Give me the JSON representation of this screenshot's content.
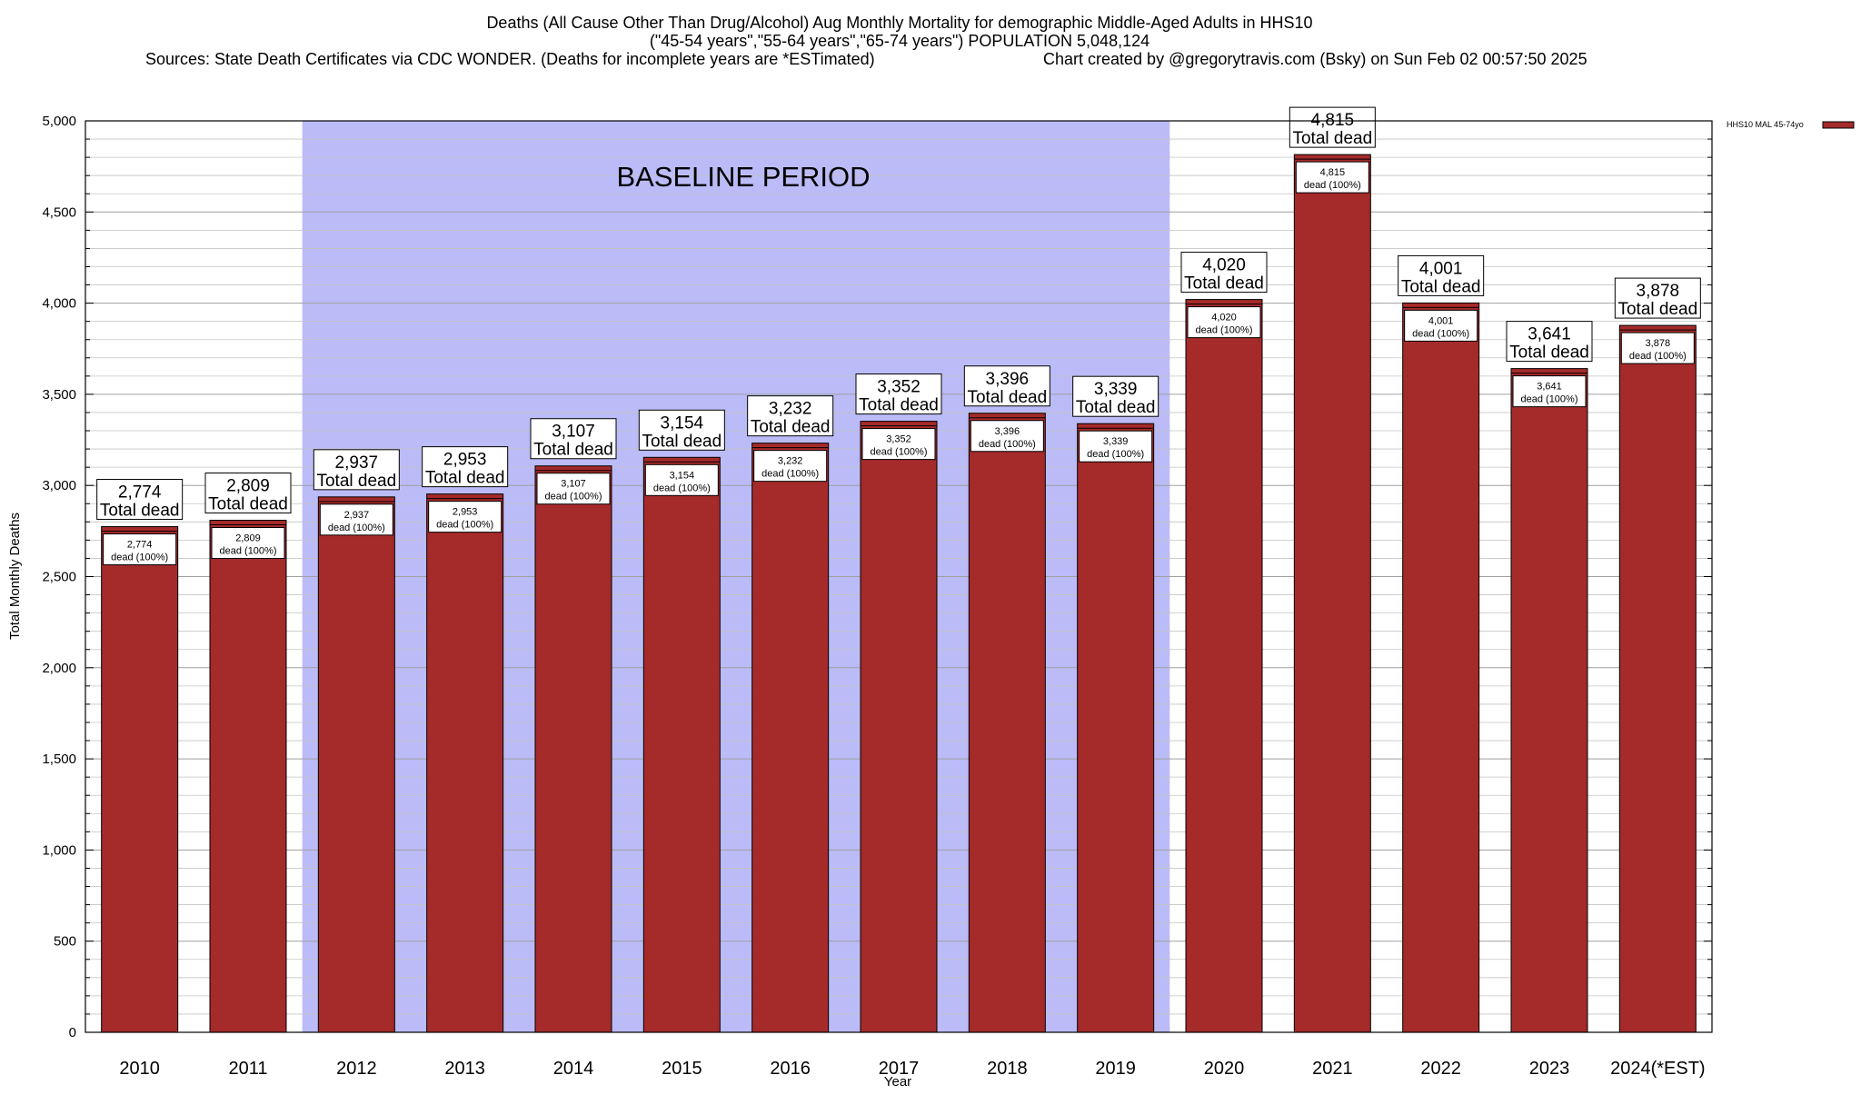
{
  "chart_data": {
    "type": "bar",
    "title_lines": [
      "Deaths (All Cause Other Than Drug/Alcohol) Aug Monthly Mortality for demographic Middle-Aged Adults in HHS10",
      "(\"45-54 years\",\"55-64 years\",\"65-74 years\") POPULATION 5,048,124"
    ],
    "sources": "Sources: State Death Certificates via CDC WONDER. (Deaths for incomplete years are *ESTimated)",
    "credit": "Chart created by @gregorytravis.com (Bsky) on Sun Feb 02 00:57:50 2025",
    "xlabel": "Year",
    "ylabel": "Total Monthly Deaths",
    "ylim": [
      0,
      5000
    ],
    "yticks": [
      0,
      500,
      1000,
      1500,
      2000,
      2500,
      3000,
      3500,
      4000,
      4500,
      5000
    ],
    "ytick_labels": [
      "0",
      "500",
      "1,000",
      "1,500",
      "2,000",
      "2,500",
      "3,000",
      "3,500",
      "4,000",
      "4,500",
      "5,000"
    ],
    "minor_gridlines": true,
    "categories": [
      "2010",
      "2011",
      "2012",
      "2013",
      "2014",
      "2015",
      "2016",
      "2017",
      "2018",
      "2019",
      "2020",
      "2021",
      "2022",
      "2023",
      "2024(*EST)"
    ],
    "series": [
      {
        "name": "HHS10 MAL 45-74yo",
        "color": "#a52a2a",
        "values": [
          2774,
          2809,
          2937,
          2953,
          3107,
          3154,
          3232,
          3352,
          3396,
          3339,
          4020,
          4815,
          4001,
          3641,
          3878
        ]
      }
    ],
    "value_labels": [
      "2,774",
      "2,809",
      "2,937",
      "2,953",
      "3,107",
      "3,154",
      "3,232",
      "3,352",
      "3,396",
      "3,339",
      "4,020",
      "4,815",
      "4,001",
      "3,641",
      "3,878"
    ],
    "total_label_suffix": "Total dead",
    "inner_label_suffix": "dead (100%)",
    "baseline": {
      "label": "BASELINE PERIOD",
      "start": "2012",
      "end": "2019",
      "color": "#bbbbf8"
    },
    "legend": {
      "placement": "top-right",
      "entries": [
        "HHS10 MAL 45-74yo"
      ]
    }
  }
}
